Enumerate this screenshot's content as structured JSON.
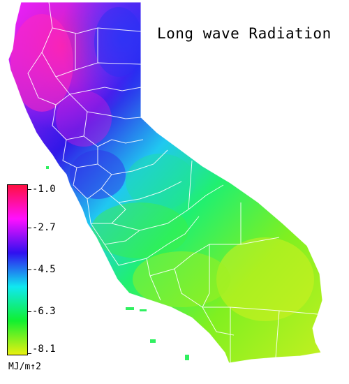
{
  "title": "Long wave Radiation",
  "legend": {
    "ticks": [
      "-1.0",
      "-2.7",
      "-4.5",
      "-6.3",
      "-8.1"
    ],
    "unit": "MJ/m↑2",
    "colors": [
      "#ff1040",
      "#ff10ff",
      "#3010f0",
      "#10e8f0",
      "#10f030",
      "#e8f010"
    ]
  },
  "map": {
    "region": "California",
    "boundaries": "county-lines",
    "boundary_color": "#ffffff"
  }
}
